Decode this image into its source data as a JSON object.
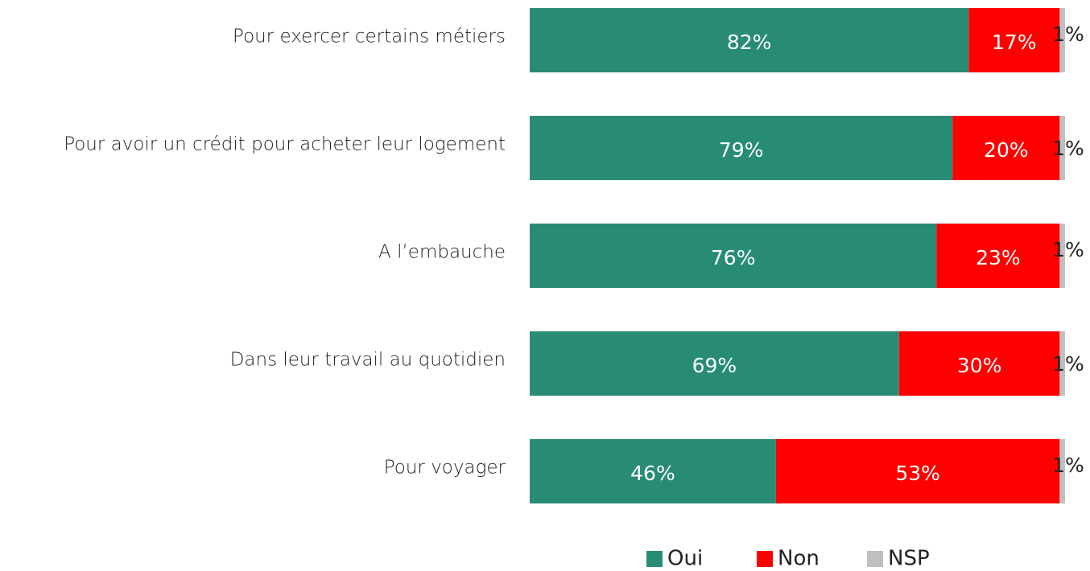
{
  "chart_data": {
    "type": "stacked_bar_horizontal",
    "categories": [
      "Pour exercer certains métiers",
      "Pour avoir un crédit pour acheter leur logement",
      "A l’embauche",
      "Dans leur travail au quotidien",
      "Pour voyager"
    ],
    "series": [
      {
        "name": "Oui",
        "color": "#288c75",
        "values": [
          82,
          79,
          76,
          69,
          46
        ],
        "value_labels": [
          "82%",
          "79%",
          "76%",
          "69%",
          "46%"
        ]
      },
      {
        "name": "Non",
        "color": "#ff0000",
        "values": [
          17,
          20,
          23,
          30,
          53
        ],
        "value_labels": [
          "17%",
          "20%",
          "23%",
          "30%",
          "53%"
        ]
      },
      {
        "name": "NSP",
        "color": "#bfbfbf",
        "values": [
          1,
          1,
          1,
          1,
          1
        ],
        "value_labels": [
          "1%",
          "1%",
          "1%",
          "1%",
          "1%"
        ]
      }
    ],
    "xlim": [
      0,
      100
    ],
    "legend": "bottom"
  }
}
